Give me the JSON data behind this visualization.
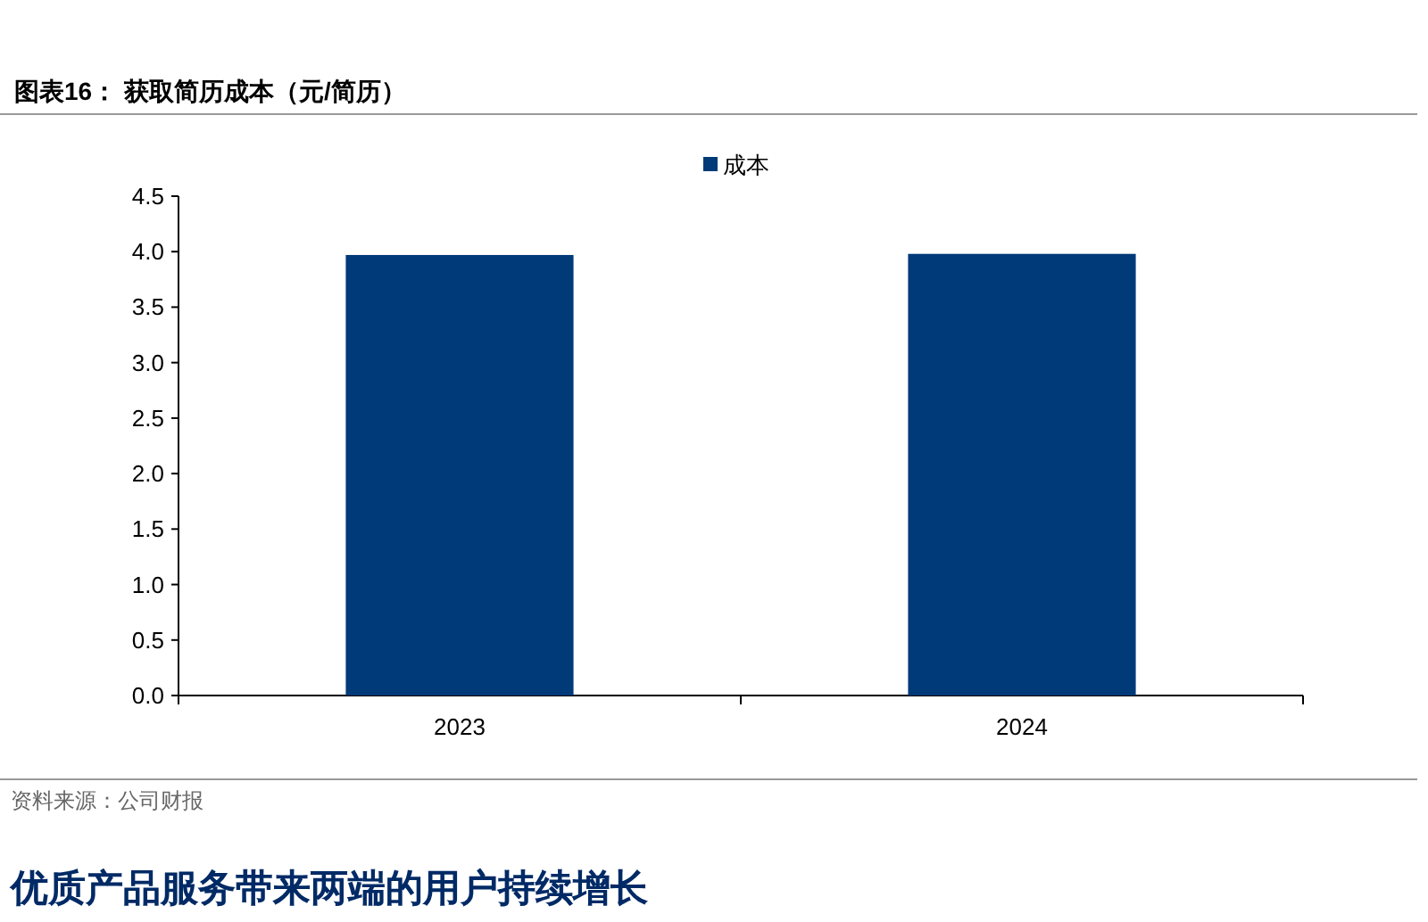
{
  "chart_data": {
    "type": "bar",
    "title": "图表16：  获取简历成本（元/简历）",
    "categories": [
      "2023",
      "2024"
    ],
    "series": [
      {
        "name": "成本",
        "color": "#003a78",
        "values": [
          3.97,
          3.98
        ]
      }
    ],
    "ylim": [
      0,
      4.5
    ],
    "yticks": [
      {
        "value": 0,
        "label": "0.0"
      },
      {
        "value": 0.5,
        "label": "0.5"
      },
      {
        "value": 1,
        "label": "1.0"
      },
      {
        "value": 1.5,
        "label": "1.5"
      },
      {
        "value": 2,
        "label": "2.0"
      },
      {
        "value": 2.5,
        "label": "2.5"
      },
      {
        "value": 3,
        "label": "3.0"
      },
      {
        "value": 3.5,
        "label": "3.5"
      },
      {
        "value": 4,
        "label": "4.0"
      },
      {
        "value": 4.5,
        "label": "4.5"
      }
    ],
    "legend": "top",
    "annotations": [
      "资料来源：公司财报",
      "优质产品服务带来两端的用户持续增长"
    ]
  }
}
